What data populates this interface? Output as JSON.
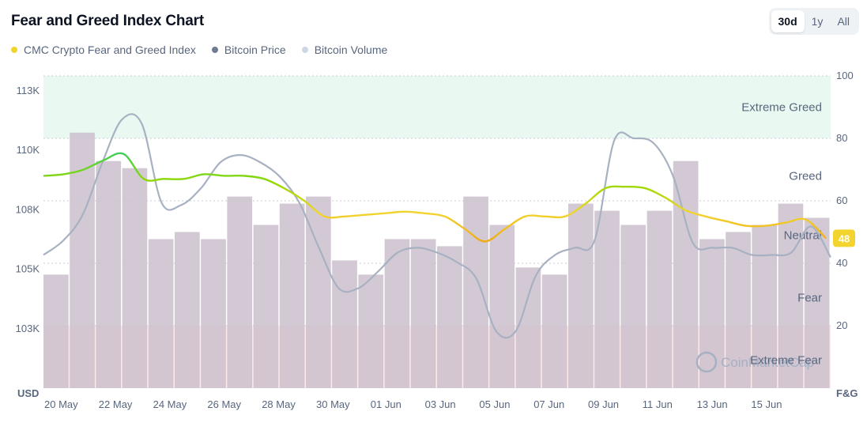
{
  "header": {
    "title": "Fear and Greed Index Chart",
    "ranges": [
      {
        "label": "30d",
        "active": true
      },
      {
        "label": "1y",
        "active": false
      },
      {
        "label": "All",
        "active": false
      }
    ]
  },
  "legend": [
    {
      "label": "CMC Crypto Fear and Greed Index",
      "color": "#f3d42f"
    },
    {
      "label": "Bitcoin Price",
      "color": "#6f7b92"
    },
    {
      "label": "Bitcoin Volume",
      "color": "#cfd6e4"
    }
  ],
  "watermark": "CoinMarketCap",
  "chart_data": {
    "type": "line",
    "x_labels": [
      "20 May",
      "22 May",
      "24 May",
      "26 May",
      "28 May",
      "30 May",
      "01 Jun",
      "03 Jun",
      "05 Jun",
      "07 Jun",
      "09 Jun",
      "11 Jun",
      "13 Jun",
      "15 Jun"
    ],
    "left_axis": {
      "unit": "USD",
      "ticks": [
        "113K",
        "110K",
        "108K",
        "105K",
        "103K"
      ],
      "tick_values": [
        112500,
        110000,
        107500,
        105000,
        102500
      ]
    },
    "right_axis": {
      "unit": "F&G",
      "ticks": [
        "100",
        "80",
        "60",
        "40",
        "20"
      ],
      "tick_values": [
        100,
        80,
        60,
        40,
        20
      ]
    },
    "zones": [
      {
        "label": "Extreme Greed",
        "from": 80,
        "to": 100,
        "color": "#e9f8f1"
      },
      {
        "label": "Greed",
        "value": 68
      },
      {
        "label": "Neutral",
        "value": 49
      },
      {
        "label": "Fear",
        "value": 29
      },
      {
        "label": "Extreme Fear",
        "from": 0,
        "to": 20,
        "color": "#fde9ea"
      }
    ],
    "current_value": "48",
    "series": [
      {
        "name": "CMC Crypto Fear and Greed Index",
        "axis": "right",
        "values": [
          68,
          68.5,
          70,
          73,
          75,
          67,
          67,
          67,
          68.5,
          68,
          68,
          67,
          64,
          60,
          55,
          55,
          55.5,
          56,
          56.5,
          56,
          55,
          51,
          47,
          51,
          55,
          55,
          55,
          59,
          64,
          64.5,
          64,
          61,
          57,
          55,
          53.5,
          52,
          52,
          53,
          54,
          48
        ]
      },
      {
        "name": "Bitcoin Price",
        "axis": "left",
        "values": [
          105600,
          106200,
          107300,
          109500,
          111300,
          111100,
          107800,
          107700,
          108400,
          109500,
          109800,
          109500,
          108900,
          107800,
          105900,
          104200,
          104200,
          104900,
          105700,
          105900,
          105700,
          105300,
          104600,
          102400,
          102400,
          104700,
          105600,
          105900,
          106200,
          110400,
          110500,
          110300,
          108900,
          106100,
          105900,
          105900,
          105600,
          105600,
          105700,
          106800,
          105500
        ]
      },
      {
        "name": "Bitcoin Volume",
        "axis": "volume",
        "values": [
          8,
          18,
          16,
          15.5,
          10.5,
          11,
          10.5,
          13.5,
          11.5,
          13,
          13.5,
          9,
          8,
          10.5,
          10.5,
          10,
          13.5,
          11.5,
          8.5,
          8,
          13,
          12.5,
          11.5,
          12.5,
          16,
          10.5,
          11,
          11.5,
          13,
          12
        ]
      }
    ]
  }
}
